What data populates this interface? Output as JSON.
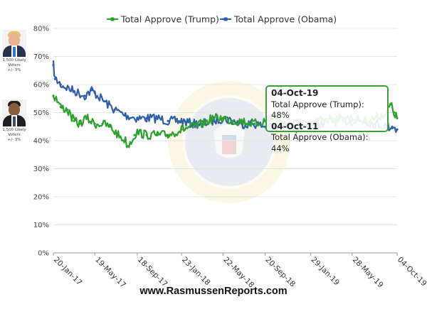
{
  "portraits": [
    {
      "caption_line1": "1,500 Likely",
      "caption_line2": "Voters",
      "caption_line3": "+/- 3%",
      "icon": "trump-portrait"
    },
    {
      "caption_line1": "1,500 Likely",
      "caption_line2": "Voters",
      "caption_line3": "+/- 3%",
      "icon": "obama-portrait"
    }
  ],
  "tooltip": {
    "date1": "04-Oct-19",
    "line1": "Total Approve (Trump): 48%",
    "date2": "04-Oct-11",
    "line2": "Total Approve (Obama): 44%"
  },
  "footer": "www.RasmussenReports.com",
  "colors": {
    "trump": "#2ca02c",
    "obama": "#2f5fa8",
    "tooltip_border": "#39a339",
    "grid": "#e4e4e4"
  },
  "chart_data": {
    "type": "line",
    "title": "",
    "xlabel": "",
    "ylabel": "",
    "x_range": [
      "20-Jan-17",
      "04-Oct-19"
    ],
    "ylim": [
      0,
      80
    ],
    "y_ticks": [
      "0%",
      "10%",
      "20%",
      "30%",
      "40%",
      "50%",
      "60%",
      "70%",
      "80%"
    ],
    "x_ticks": [
      "20-Jan-17",
      "19-May-17",
      "18-Sep-17",
      "23-Jan-18",
      "22-May-18",
      "20-Sep-18",
      "29-Jan-19",
      "28-May-19",
      "04-Oct-19"
    ],
    "grid": "horizontal",
    "legend_position": "top",
    "series": [
      {
        "name": "Total Approve (Trump)",
        "color": "#2ca02c",
        "points": [
          [
            "20-Jan-17",
            56
          ],
          [
            "28-Jan-17",
            55
          ],
          [
            "10-Feb-17",
            52
          ],
          [
            "01-Mar-17",
            51
          ],
          [
            "20-Mar-17",
            47
          ],
          [
            "05-Apr-17",
            46
          ],
          [
            "25-Apr-17",
            48
          ],
          [
            "19-May-17",
            46
          ],
          [
            "10-Jun-17",
            46
          ],
          [
            "01-Jul-17",
            45
          ],
          [
            "25-Jul-17",
            42
          ],
          [
            "15-Aug-17",
            40
          ],
          [
            "22-Aug-17",
            38
          ],
          [
            "10-Sep-17",
            42
          ],
          [
            "18-Sep-17",
            43
          ],
          [
            "15-Oct-17",
            42
          ],
          [
            "15-Nov-17",
            42
          ],
          [
            "15-Dec-17",
            42
          ],
          [
            "23-Jan-18",
            44
          ],
          [
            "25-Feb-18",
            45
          ],
          [
            "25-Mar-18",
            46
          ],
          [
            "22-Apr-18",
            48
          ],
          [
            "22-May-18",
            48
          ],
          [
            "20-Jun-18",
            47
          ],
          [
            "15-Jul-18",
            47
          ],
          [
            "20-Aug-18",
            46
          ],
          [
            "20-Sep-18",
            47
          ],
          [
            "20-Oct-18",
            48
          ],
          [
            "20-Nov-18",
            46
          ],
          [
            "22-Dec-18",
            44
          ],
          [
            "29-Jan-19",
            45
          ],
          [
            "01-Mar-19",
            48
          ],
          [
            "01-Apr-19",
            48
          ],
          [
            "28-May-19",
            48
          ],
          [
            "01-Jul-19",
            47
          ],
          [
            "01-Aug-19",
            48
          ],
          [
            "05-Sep-19",
            50
          ],
          [
            "15-Sep-19",
            53
          ],
          [
            "25-Sep-19",
            50
          ],
          [
            "04-Oct-19",
            48
          ]
        ]
      },
      {
        "name": "Total Approve (Obama)",
        "color": "#2f5fa8",
        "points": [
          [
            "20-Jan-17",
            67
          ],
          [
            "25-Jan-17",
            62
          ],
          [
            "10-Feb-17",
            60
          ],
          [
            "15-Mar-17",
            58
          ],
          [
            "20-Apr-17",
            56
          ],
          [
            "10-May-17",
            58
          ],
          [
            "19-May-17",
            57
          ],
          [
            "15-Jun-17",
            54
          ],
          [
            "15-Jul-17",
            51
          ],
          [
            "15-Aug-17",
            49
          ],
          [
            "18-Sep-17",
            48
          ],
          [
            "15-Oct-17",
            48
          ],
          [
            "15-Nov-17",
            48
          ],
          [
            "15-Dec-17",
            47
          ],
          [
            "23-Jan-18",
            47
          ],
          [
            "25-Feb-18",
            46
          ],
          [
            "25-Mar-18",
            46
          ],
          [
            "22-Apr-18",
            47
          ],
          [
            "22-May-18",
            48
          ],
          [
            "20-Jun-18",
            47
          ],
          [
            "15-Jul-18",
            46
          ],
          [
            "20-Aug-18",
            46
          ],
          [
            "20-Sep-18",
            45
          ],
          [
            "20-Oct-18",
            45
          ],
          [
            "20-Nov-18",
            46
          ],
          [
            "22-Dec-18",
            46
          ],
          [
            "29-Jan-19",
            46
          ],
          [
            "01-Mar-19",
            46
          ],
          [
            "01-Apr-19",
            47
          ],
          [
            "28-May-19",
            47
          ],
          [
            "01-Jul-19",
            47
          ],
          [
            "01-Aug-19",
            46
          ],
          [
            "05-Sep-19",
            45
          ],
          [
            "20-Sep-19",
            45
          ],
          [
            "04-Oct-19",
            44
          ]
        ]
      }
    ]
  }
}
